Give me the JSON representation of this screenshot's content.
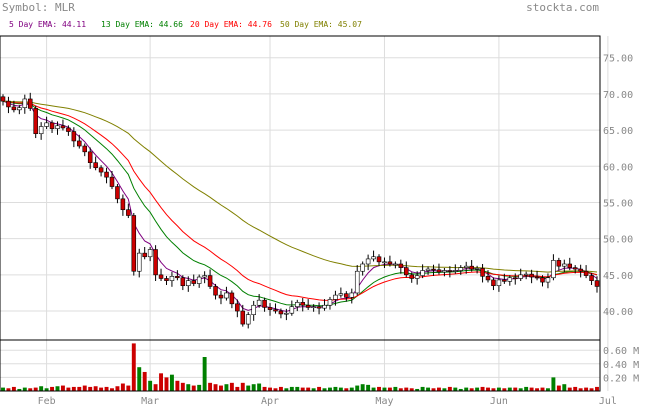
{
  "header": {
    "symbol_label": "Symbol: MLR",
    "brand": "stockta.com"
  },
  "legend": [
    {
      "label": "5 Day EMA: 44.11",
      "color": "#800080"
    },
    {
      "label": "13 Day EMA: 44.66",
      "color": "#008000"
    },
    {
      "label": "20 Day EMA: 44.76",
      "color": "#ff0000"
    },
    {
      "label": "50 Day EMA: 45.07",
      "color": "#808000"
    }
  ],
  "colors": {
    "up": "#ffffff",
    "down": "#cc0000",
    "vol_up": "#008000",
    "vol_down": "#cc0000",
    "grid": "#dddddd",
    "frame": "#000000"
  },
  "chart_data": {
    "type": "candlestick",
    "price_axis": {
      "ylim": [
        36.0,
        78.0
      ],
      "ticks": [
        "75.00",
        "70.00",
        "65.00",
        "60.00",
        "55.00",
        "50.00",
        "45.00",
        "40.00"
      ],
      "values": [
        75,
        70,
        65,
        60,
        55,
        50,
        45,
        40
      ]
    },
    "volume_axis": {
      "ylim": [
        0,
        0.75
      ],
      "ticks": [
        "0.60 M",
        "0.40 M",
        "0.20 M"
      ],
      "values": [
        0.6,
        0.4,
        0.2
      ]
    },
    "months": [
      {
        "label": "Feb",
        "day": 8
      },
      {
        "label": "Mar",
        "day": 27
      },
      {
        "label": "Apr",
        "day": 49
      },
      {
        "label": "May",
        "day": 70
      },
      {
        "label": "Jun",
        "day": 91
      },
      {
        "label": "Jul",
        "day": 111
      }
    ],
    "close": [
      69.0,
      68.2,
      67.8,
      68.1,
      69.3,
      68.0,
      64.5,
      65.5,
      66.0,
      65.2,
      65.6,
      65.3,
      64.8,
      63.5,
      62.8,
      62.0,
      60.5,
      59.8,
      59.2,
      58.5,
      57.2,
      55.5,
      54.0,
      53.2,
      45.5,
      48.0,
      47.5,
      48.5,
      45.0,
      44.5,
      44.2,
      44.8,
      44.6,
      43.5,
      44.2,
      43.8,
      44.7,
      44.9,
      43.4,
      42.2,
      41.8,
      42.5,
      41.0,
      40.0,
      38.2,
      39.5,
      40.8,
      41.5,
      40.5,
      40.2,
      40.0,
      39.6,
      39.7,
      40.6,
      41.2,
      40.8,
      40.5,
      40.6,
      40.4,
      40.8,
      41.6,
      42.2,
      42.4,
      41.9,
      42.5,
      45.5,
      46.5,
      47.2,
      47.5,
      46.8,
      46.8,
      46.5,
      46.5,
      46.0,
      45.0,
      44.5,
      44.9,
      45.6,
      45.8,
      45.7,
      45.4,
      45.6,
      45.5,
      45.6,
      46.0,
      46.2,
      45.8,
      45.9,
      44.8,
      44.3,
      43.5,
      44.3,
      44.1,
      44.6,
      44.5,
      45.0,
      45.1,
      44.7,
      44.6,
      44.0,
      44.6,
      47.0,
      46.2,
      46.5,
      46.0,
      45.8,
      45.5,
      44.9,
      44.2,
      43.4
    ],
    "volume": [
      0.05,
      0.04,
      0.06,
      0.03,
      0.05,
      0.04,
      0.05,
      0.07,
      0.04,
      0.06,
      0.07,
      0.08,
      0.05,
      0.06,
      0.06,
      0.08,
      0.06,
      0.07,
      0.05,
      0.06,
      0.04,
      0.07,
      0.11,
      0.08,
      0.7,
      0.35,
      0.28,
      0.15,
      0.1,
      0.26,
      0.2,
      0.24,
      0.15,
      0.12,
      0.1,
      0.08,
      0.09,
      0.5,
      0.12,
      0.1,
      0.08,
      0.1,
      0.12,
      0.06,
      0.12,
      0.08,
      0.1,
      0.11,
      0.06,
      0.05,
      0.04,
      0.06,
      0.04,
      0.06,
      0.06,
      0.05,
      0.05,
      0.04,
      0.06,
      0.04,
      0.05,
      0.06,
      0.05,
      0.04,
      0.05,
      0.08,
      0.1,
      0.09,
      0.05,
      0.06,
      0.05,
      0.05,
      0.06,
      0.04,
      0.05,
      0.04,
      0.03,
      0.06,
      0.05,
      0.04,
      0.05,
      0.04,
      0.06,
      0.05,
      0.03,
      0.05,
      0.04,
      0.05,
      0.06,
      0.05,
      0.04,
      0.05,
      0.04,
      0.05,
      0.05,
      0.04,
      0.06,
      0.05,
      0.04,
      0.05,
      0.04,
      0.2,
      0.08,
      0.1,
      0.05,
      0.06,
      0.04,
      0.05,
      0.04,
      0.06
    ]
  }
}
